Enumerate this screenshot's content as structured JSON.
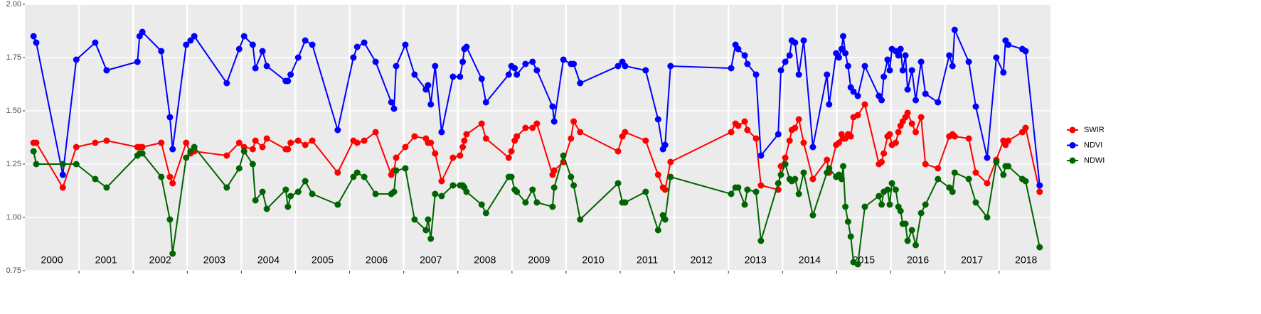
{
  "chart_data": {
    "type": "line",
    "x": [
      2000.16,
      2000.21,
      2000.7,
      2000.95,
      2001.3,
      2001.51,
      2002.08,
      2002.12,
      2002.17,
      2002.52,
      2002.68,
      2002.73,
      2002.98,
      2003.06,
      2003.13,
      2003.73,
      2003.96,
      2004.05,
      2004.21,
      2004.26,
      2004.39,
      2004.47,
      2004.82,
      2004.86,
      2004.91,
      2005.05,
      2005.18,
      2005.31,
      2005.78,
      2006.07,
      2006.14,
      2006.27,
      2006.48,
      2006.77,
      2006.82,
      2006.86,
      2007.03,
      2007.2,
      2007.41,
      2007.45,
      2007.5,
      2007.58,
      2007.7,
      2007.91,
      2008.04,
      2008.09,
      2008.12,
      2008.16,
      2008.44,
      2008.52,
      2008.94,
      2008.99,
      2009.05,
      2009.09,
      2009.25,
      2009.38,
      2009.46,
      2009.75,
      2009.78,
      2009.95,
      2010.09,
      2010.14,
      2010.26,
      2010.96,
      2011.04,
      2011.09,
      2011.47,
      2011.7,
      2011.79,
      2011.83,
      2011.93,
      2013.05,
      2013.13,
      2013.18,
      2013.3,
      2013.35,
      2013.51,
      2013.6,
      2013.92,
      2013.97,
      2014.05,
      2014.13,
      2014.17,
      2014.23,
      2014.3,
      2014.39,
      2014.56,
      2014.82,
      2014.86,
      2014.99,
      2015.04,
      2015.09,
      2015.12,
      2015.16,
      2015.21,
      2015.26,
      2015.31,
      2015.39,
      2015.52,
      2015.78,
      2015.83,
      2015.87,
      2015.94,
      2015.98,
      2016.02,
      2016.09,
      2016.14,
      2016.18,
      2016.22,
      2016.27,
      2016.31,
      2016.39,
      2016.46,
      2016.56,
      2016.64,
      2016.87,
      2017.08,
      2017.14,
      2017.18,
      2017.44,
      2017.57,
      2017.78,
      2017.95,
      2018.08,
      2018.12,
      2018.17,
      2018.43,
      2018.49,
      2018.75
    ],
    "series": [
      {
        "name": "SWIR",
        "color": "#ff0000",
        "values": [
          1.35,
          1.35,
          1.14,
          1.33,
          1.35,
          1.36,
          1.33,
          1.33,
          1.33,
          1.35,
          1.19,
          1.16,
          1.35,
          1.3,
          1.31,
          1.29,
          1.35,
          1.33,
          1.32,
          1.36,
          1.33,
          1.37,
          1.32,
          1.32,
          1.35,
          1.36,
          1.34,
          1.36,
          1.21,
          1.36,
          1.35,
          1.36,
          1.4,
          1.2,
          1.22,
          1.28,
          1.33,
          1.38,
          1.37,
          1.35,
          1.35,
          1.3,
          1.17,
          1.28,
          1.29,
          1.33,
          1.36,
          1.39,
          1.44,
          1.37,
          1.28,
          1.31,
          1.36,
          1.38,
          1.42,
          1.42,
          1.44,
          1.2,
          1.22,
          1.26,
          1.37,
          1.45,
          1.4,
          1.31,
          1.38,
          1.4,
          1.36,
          1.2,
          1.14,
          1.13,
          1.26,
          1.4,
          1.44,
          1.43,
          1.45,
          1.41,
          1.37,
          1.15,
          1.13,
          1.24,
          1.28,
          1.36,
          1.41,
          1.42,
          1.46,
          1.35,
          1.18,
          1.27,
          1.21,
          1.34,
          1.35,
          1.39,
          1.37,
          1.37,
          1.39,
          1.38,
          1.47,
          1.48,
          1.53,
          1.25,
          1.26,
          1.3,
          1.38,
          1.39,
          1.34,
          1.35,
          1.4,
          1.43,
          1.45,
          1.47,
          1.49,
          1.44,
          1.4,
          1.47,
          1.25,
          1.23,
          1.38,
          1.39,
          1.38,
          1.37,
          1.21,
          1.16,
          1.27,
          1.36,
          1.34,
          1.36,
          1.4,
          1.42,
          1.12
        ]
      },
      {
        "name": "NDVI",
        "color": "#0000ff",
        "values": [
          1.85,
          1.82,
          1.2,
          1.74,
          1.82,
          1.69,
          1.73,
          1.85,
          1.87,
          1.78,
          1.47,
          1.32,
          1.81,
          1.83,
          1.85,
          1.63,
          1.79,
          1.85,
          1.81,
          1.7,
          1.78,
          1.71,
          1.64,
          1.64,
          1.67,
          1.75,
          1.83,
          1.81,
          1.41,
          1.75,
          1.8,
          1.82,
          1.73,
          1.54,
          1.51,
          1.71,
          1.81,
          1.67,
          1.6,
          1.62,
          1.53,
          1.71,
          1.4,
          1.66,
          1.66,
          1.73,
          1.79,
          1.8,
          1.65,
          1.54,
          1.67,
          1.71,
          1.7,
          1.67,
          1.72,
          1.73,
          1.69,
          1.52,
          1.45,
          1.74,
          1.72,
          1.72,
          1.63,
          1.71,
          1.73,
          1.71,
          1.69,
          1.46,
          1.32,
          1.34,
          1.71,
          1.7,
          1.81,
          1.79,
          1.76,
          1.72,
          1.67,
          1.29,
          1.39,
          1.69,
          1.73,
          1.76,
          1.83,
          1.82,
          1.67,
          1.83,
          1.33,
          1.67,
          1.53,
          1.77,
          1.75,
          1.79,
          1.85,
          1.77,
          1.71,
          1.61,
          1.59,
          1.57,
          1.71,
          1.57,
          1.55,
          1.66,
          1.74,
          1.69,
          1.79,
          1.78,
          1.76,
          1.79,
          1.69,
          1.76,
          1.6,
          1.69,
          1.55,
          1.73,
          1.58,
          1.54,
          1.76,
          1.71,
          1.88,
          1.73,
          1.52,
          1.28,
          1.75,
          1.68,
          1.83,
          1.81,
          1.79,
          1.78,
          1.15
        ]
      },
      {
        "name": "NDWI",
        "color": "#006400",
        "values": [
          1.31,
          1.25,
          1.25,
          1.25,
          1.18,
          1.14,
          1.29,
          1.3,
          1.3,
          1.19,
          0.99,
          0.83,
          1.28,
          1.31,
          1.33,
          1.14,
          1.23,
          1.31,
          1.25,
          1.08,
          1.12,
          1.04,
          1.13,
          1.05,
          1.1,
          1.12,
          1.17,
          1.11,
          1.06,
          1.19,
          1.21,
          1.19,
          1.11,
          1.11,
          1.12,
          1.22,
          1.23,
          0.99,
          0.94,
          0.99,
          0.9,
          1.11,
          1.1,
          1.15,
          1.15,
          1.15,
          1.14,
          1.12,
          1.06,
          1.02,
          1.19,
          1.19,
          1.13,
          1.12,
          1.07,
          1.13,
          1.07,
          1.05,
          1.14,
          1.29,
          1.19,
          1.15,
          0.99,
          1.16,
          1.07,
          1.07,
          1.12,
          0.94,
          1.01,
          0.99,
          1.19,
          1.11,
          1.14,
          1.14,
          1.06,
          1.13,
          1.12,
          0.89,
          1.16,
          1.2,
          1.25,
          1.18,
          1.17,
          1.18,
          1.11,
          1.21,
          1.01,
          1.21,
          1.23,
          1.19,
          1.2,
          1.18,
          1.24,
          1.05,
          0.98,
          0.91,
          0.79,
          0.78,
          1.05,
          1.1,
          1.06,
          1.12,
          1.13,
          1.06,
          1.16,
          1.13,
          1.05,
          1.03,
          0.97,
          0.97,
          0.89,
          0.94,
          0.87,
          1.02,
          1.06,
          1.18,
          1.14,
          1.12,
          1.21,
          1.18,
          1.07,
          1.0,
          1.26,
          1.2,
          1.24,
          1.24,
          1.18,
          1.17,
          0.86
        ]
      }
    ],
    "year_labels": [
      "2000",
      "2001",
      "2002",
      "2003",
      "2004",
      "2005",
      "2006",
      "2007",
      "2008",
      "2009",
      "2010",
      "2011",
      "2012",
      "2013",
      "2014",
      "2015",
      "2016",
      "2017",
      "2018"
    ],
    "xlim": [
      2000.0,
      2018.95
    ],
    "xticks": [
      2001,
      2002,
      2003,
      2004,
      2005,
      2006,
      2007,
      2008,
      2009,
      2010,
      2011,
      2012,
      2013,
      2014,
      2015,
      2016,
      2017,
      2018
    ],
    "ylim": [
      0.75,
      2
    ],
    "yticks": [
      0.75,
      {
        "value": 1,
        "label": "1.00"
      },
      1.25,
      {
        "value": 1.5,
        "label": "1.50"
      },
      1.75,
      {
        "value": 2,
        "label": "2.00"
      }
    ],
    "grid": true,
    "legend": "right"
  }
}
